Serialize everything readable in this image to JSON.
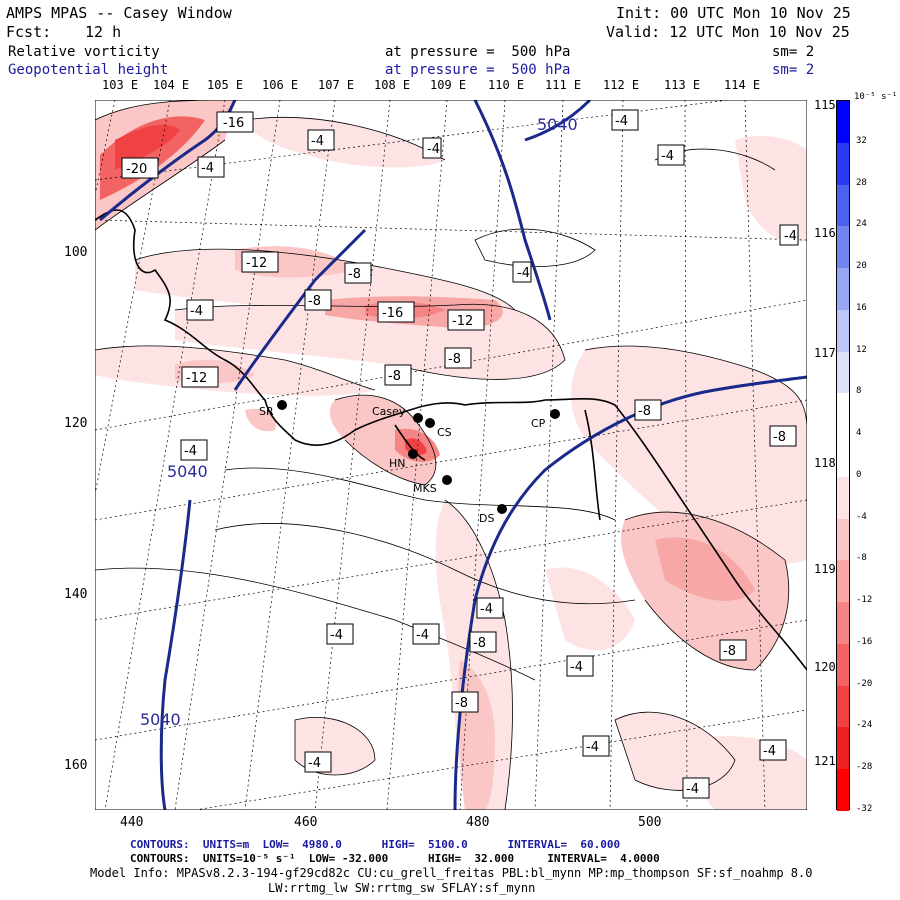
{
  "header": {
    "title": "AMPS MPAS -- Casey Window",
    "init": "Init: 00 UTC Mon 10 Nov 25",
    "fcst_label": "Fcst:",
    "fcst_value": "12 h",
    "valid": "Valid: 12 UTC Mon 10 Nov 25",
    "field1": "Relative vorticity",
    "field1_level": "at pressure =  500 hPa",
    "field1_sm": "sm= 2",
    "field2": "Geopotential height",
    "field2_level": "at pressure =  500 hPa",
    "field2_sm": "sm= 2"
  },
  "top_lon_labels": [
    "103 E",
    "104 E",
    "105 E",
    "106 E",
    "107 E",
    "108 E",
    "109 E",
    "110 E",
    "111 E",
    "112 E",
    "113 E",
    "114 E"
  ],
  "right_lon_labels": [
    "115 E",
    "116 E",
    "117 E",
    "118 E",
    "119 E",
    "120 E",
    "121 E"
  ],
  "x_ticks": [
    "440",
    "460",
    "480",
    "500"
  ],
  "y_ticks": [
    "100",
    "120",
    "140",
    "160"
  ],
  "stations": [
    {
      "name": "SR"
    },
    {
      "name": "Casey"
    },
    {
      "name": "CS"
    },
    {
      "name": "HN"
    },
    {
      "name": "MKS"
    },
    {
      "name": "DS"
    },
    {
      "name": "CP"
    }
  ],
  "height_labels": [
    "5040",
    "5040",
    "5040"
  ],
  "vort_labels": [
    "-16",
    "-20",
    "-4",
    "-4",
    "-4",
    "-4",
    "-4",
    "-12",
    "-8",
    "-8",
    "-4",
    "-16",
    "-12",
    "-8",
    "-8",
    "-12",
    "-4",
    "-8",
    "-8",
    "-4",
    "-4",
    "-4",
    "-8",
    "-4",
    "-8",
    "-8",
    "-4",
    "-4",
    "-4",
    "-4",
    "-4",
    "-4"
  ],
  "colorbar": {
    "unit_label": "10⁻⁵ s⁻¹",
    "ticks": [
      "32",
      "28",
      "24",
      "20",
      "16",
      "12",
      "8",
      "4",
      "0",
      "-4",
      "-8",
      "-12",
      "-16",
      "-20",
      "-24",
      "-28",
      "-32"
    ],
    "colors": [
      "#0000ff",
      "#2a3cf2",
      "#4e62f0",
      "#7085f2",
      "#97a6f5",
      "#bcc6f8",
      "#dde2fb",
      "#ffffff",
      "#ffffff",
      "#fde3e3",
      "#fbc6c6",
      "#f8a7a7",
      "#f58585",
      "#f26464",
      "#f04242",
      "#f02020",
      "#ff0000"
    ]
  },
  "footer": {
    "line1": "CONTOURS:  UNITS=m  LOW=  4980.0      HIGH=  5100.0      INTERVAL=  60.000",
    "line2": "CONTOURS:  UNITS=10⁻⁵ s⁻¹  LOW= -32.000      HIGH=  32.000     INTERVAL=  4.0000",
    "line3": "Model Info: MPASv8.2.3-194-gf29cd82c CU:cu_grell_freitas PBL:bl_mynn MP:mp_thompson SF:sf_noahmp 8.0",
    "line4": "LW:rrtmg_lw SW:rrtmg_sw SFLAY:sf_mynn"
  }
}
